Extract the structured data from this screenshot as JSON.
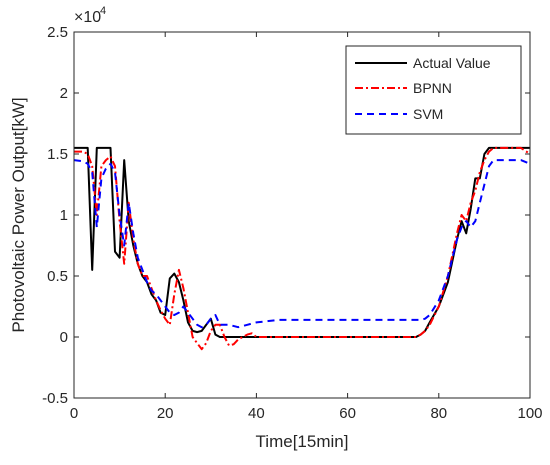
{
  "chart_data": {
    "type": "line",
    "title": "",
    "xlabel": "Time[15min]",
    "ylabel": "Photovoltaic Power Output[kW]",
    "y_exponent_label": "×10",
    "y_exponent_power": "4",
    "xlim": [
      0,
      100
    ],
    "ylim": [
      -0.5,
      2.5
    ],
    "x_ticks": [
      0,
      20,
      40,
      60,
      80,
      100
    ],
    "x_tick_labels": [
      "0",
      "20",
      "40",
      "60",
      "80",
      "100"
    ],
    "y_ticks": [
      -0.5,
      0,
      0.5,
      1,
      1.5,
      2,
      2.5
    ],
    "y_tick_labels": [
      "-0.5",
      "0",
      "0.5",
      "1",
      "1.5",
      "2",
      "2.5"
    ],
    "grid": false,
    "legend_position": "top-right",
    "series": [
      {
        "name": "Actual Value",
        "color": "#000000",
        "dash": "solid",
        "x": [
          0,
          2,
          3,
          4,
          5,
          6,
          7,
          8,
          9,
          10,
          11,
          12,
          13,
          14,
          15,
          16,
          17,
          18,
          19,
          20,
          21,
          22,
          23,
          24,
          25,
          26,
          27,
          28,
          29,
          30,
          31,
          32,
          34,
          36,
          38,
          40,
          45,
          50,
          55,
          60,
          65,
          70,
          75,
          76,
          77,
          78,
          80,
          82,
          84,
          85,
          86,
          87,
          88,
          89,
          90,
          91,
          92,
          95,
          98,
          100
        ],
        "y": [
          1.55,
          1.55,
          1.55,
          0.55,
          1.55,
          1.55,
          1.55,
          1.55,
          0.7,
          0.65,
          1.45,
          0.95,
          0.75,
          0.6,
          0.5,
          0.45,
          0.35,
          0.3,
          0.2,
          0.18,
          0.48,
          0.52,
          0.45,
          0.3,
          0.12,
          0.05,
          0.04,
          0.05,
          0.1,
          0.15,
          0.02,
          0.0,
          0.0,
          0.0,
          0.0,
          0.0,
          0.0,
          0.0,
          0.0,
          0.0,
          0.0,
          0.0,
          0.0,
          0.02,
          0.05,
          0.12,
          0.25,
          0.45,
          0.8,
          0.95,
          0.85,
          1.05,
          1.3,
          1.3,
          1.5,
          1.55,
          1.55,
          1.55,
          1.55,
          1.55
        ]
      },
      {
        "name": "BPNN",
        "color": "#ff0000",
        "dash": "dashdot",
        "x": [
          0,
          2,
          3,
          4,
          5,
          6,
          7,
          8,
          9,
          10,
          11,
          12,
          13,
          14,
          15,
          16,
          17,
          18,
          19,
          20,
          21,
          22,
          23,
          24,
          25,
          26,
          27,
          28,
          29,
          30,
          31,
          32,
          33,
          34,
          35,
          36,
          37,
          38,
          39,
          40,
          45,
          50,
          55,
          60,
          65,
          70,
          75,
          76,
          77,
          78,
          80,
          82,
          84,
          85,
          86,
          87,
          88,
          89,
          90,
          91,
          92,
          95,
          98,
          100
        ],
        "y": [
          1.52,
          1.52,
          1.5,
          1.4,
          1.0,
          1.4,
          1.45,
          1.48,
          1.4,
          0.95,
          0.6,
          1.1,
          0.8,
          0.6,
          0.5,
          0.5,
          0.4,
          0.3,
          0.22,
          0.15,
          0.1,
          0.35,
          0.55,
          0.4,
          0.2,
          0.0,
          -0.05,
          -0.1,
          -0.05,
          0.05,
          0.1,
          0.1,
          0.0,
          -0.07,
          -0.06,
          -0.02,
          0.0,
          0.02,
          0.03,
          0.0,
          0.0,
          0.0,
          0.0,
          0.0,
          0.0,
          0.0,
          0.0,
          0.02,
          0.05,
          0.1,
          0.25,
          0.5,
          0.85,
          1.0,
          0.95,
          1.1,
          1.2,
          1.35,
          1.45,
          1.52,
          1.55,
          1.55,
          1.55,
          1.5
        ]
      },
      {
        "name": "SVM",
        "color": "#0000ff",
        "dash": "dashed",
        "x": [
          0,
          2,
          3,
          4,
          5,
          6,
          7,
          8,
          9,
          10,
          11,
          12,
          13,
          14,
          15,
          16,
          17,
          18,
          19,
          20,
          21,
          22,
          23,
          24,
          25,
          26,
          27,
          28,
          29,
          30,
          31,
          32,
          34,
          36,
          38,
          40,
          45,
          50,
          55,
          60,
          65,
          70,
          75,
          76,
          77,
          78,
          80,
          82,
          84,
          85,
          86,
          87,
          88,
          89,
          90,
          91,
          92,
          95,
          98,
          100
        ],
        "y": [
          1.45,
          1.44,
          1.42,
          1.35,
          0.9,
          1.3,
          1.38,
          1.42,
          1.35,
          1.0,
          0.75,
          1.1,
          0.85,
          0.65,
          0.55,
          0.45,
          0.38,
          0.35,
          0.3,
          0.25,
          0.2,
          0.18,
          0.2,
          0.25,
          0.2,
          0.15,
          0.1,
          0.08,
          0.1,
          0.15,
          0.18,
          0.1,
          0.1,
          0.08,
          0.1,
          0.12,
          0.14,
          0.14,
          0.14,
          0.14,
          0.14,
          0.14,
          0.14,
          0.14,
          0.15,
          0.18,
          0.3,
          0.5,
          0.8,
          0.9,
          0.95,
          0.9,
          0.95,
          1.1,
          1.25,
          1.4,
          1.45,
          1.45,
          1.45,
          1.42
        ]
      }
    ]
  }
}
